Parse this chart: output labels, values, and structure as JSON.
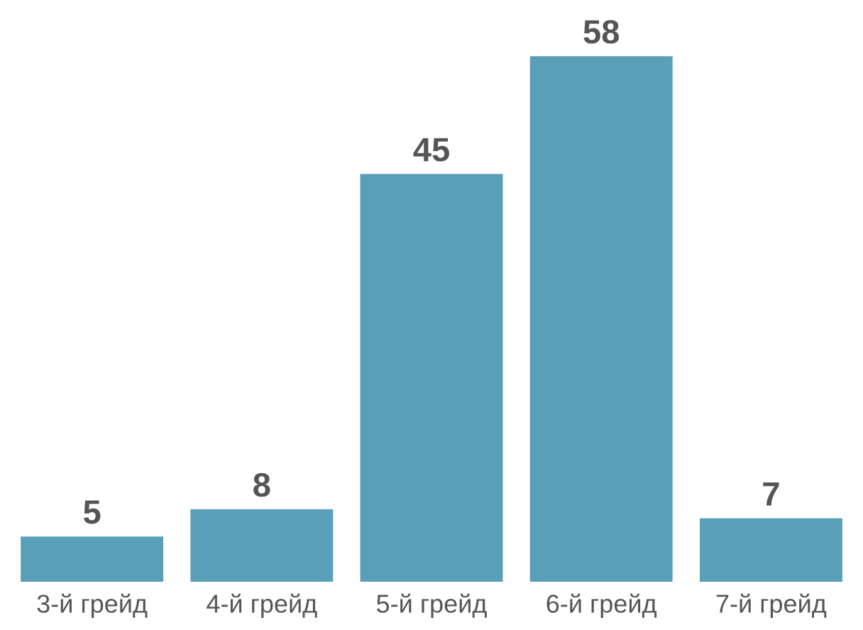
{
  "chart_data": {
    "type": "bar",
    "categories": [
      "3-й грейд",
      "4-й грейд",
      "5-й грейд",
      "6-й грейд",
      "7-й грейд"
    ],
    "values": [
      5,
      8,
      45,
      58,
      7
    ],
    "color": "#5a9fb8",
    "data_labels": true,
    "grid": false
  }
}
